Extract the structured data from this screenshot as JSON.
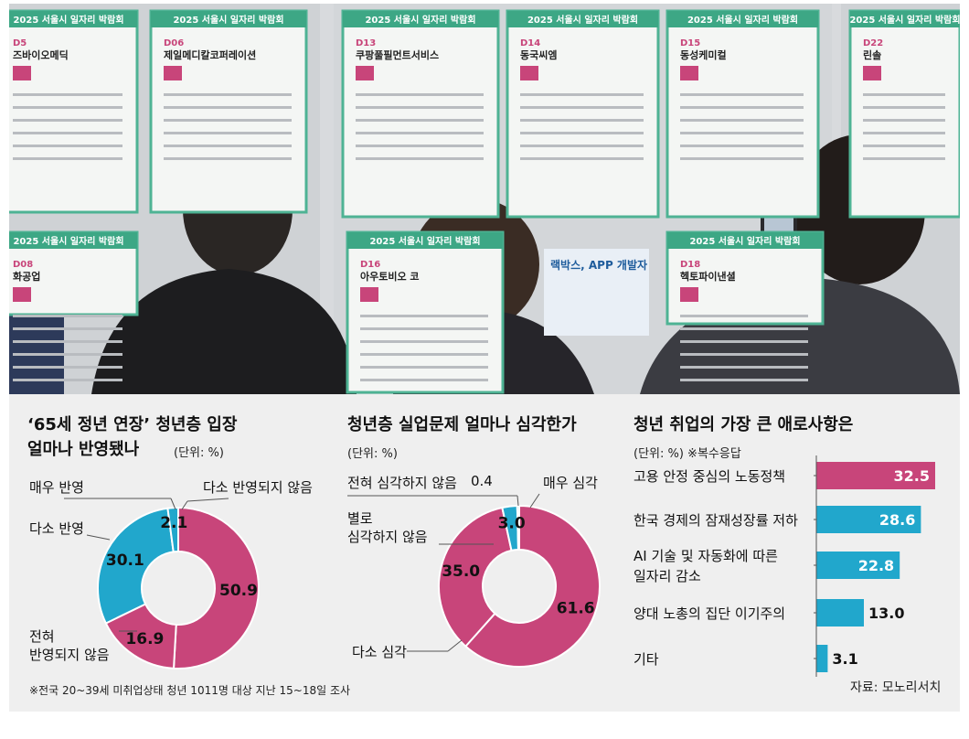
{
  "photo": {
    "booth_headers": [
      "2025 서울시 일자리 박람회",
      "2025 서울시 일자리 박람회",
      "2025 서울시 일자리 박람회",
      "2025 서울시 일자리 박람회",
      "2025 서울시 일자리 박람회",
      "2025 서울시 일자리 박람회"
    ],
    "booths": [
      {
        "code": "D5",
        "name": "즈바이오메딕"
      },
      {
        "code": "D06",
        "name": "제일메디칼코퍼레이션"
      },
      {
        "code": "D13",
        "name": "쿠팡풀필먼트서비스"
      },
      {
        "code": "D14",
        "name": "동국씨엠"
      },
      {
        "code": "D15",
        "name": "동성케미컬"
      },
      {
        "code": "D22",
        "name": "린솔"
      },
      {
        "code": "D08",
        "name": "화공업"
      },
      {
        "code": "D16",
        "name": "아우토비오 코"
      },
      {
        "code": "D18",
        "name": "헥토파이낸셜"
      }
    ],
    "app_poster": "랙박스, APP 개발자"
  },
  "footnote": "※전국 20~39세 미취업상태 청년 1011명 대상 지난 15~18일 조사",
  "source": "자료: 모노리서치",
  "colors": {
    "pink": "#c8457a",
    "blue": "#21a7cc",
    "gray": "#9aa3ab",
    "panel": "#efefef"
  },
  "chart_data": [
    {
      "type": "pie",
      "title_line1": "‘65세 정년 연장’ 청년층 입장",
      "title_line2": "얼마나 반영됐나",
      "unit": "(단위: %)",
      "slices": [
        {
          "label": "매우 반영",
          "value": 0.0,
          "color": "#9aa3ab"
        },
        {
          "label": "다소 반영되지 않음",
          "value": 50.9,
          "color": "#c8457a"
        },
        {
          "label": "전혀 반영되지 않음",
          "value": 16.9,
          "color": "#c8457a"
        },
        {
          "label": "다소 반영",
          "value": 30.1,
          "color": "#21a7cc"
        },
        {
          "label": "매우 반영",
          "value": 2.1,
          "color": "#21a7cc"
        }
      ],
      "labels": {
        "very": "매우 반영",
        "somewhat": "다소 반영",
        "not_somewhat": "다소 반영되지 않음",
        "not_at_all_1": "전혀",
        "not_at_all_2": "반영되지 않음"
      }
    },
    {
      "type": "pie",
      "title": "청년층 실업문제 얼마나 심각한가",
      "unit": "(단위: %)",
      "slices": [
        {
          "label": "매우 심각",
          "value": 61.6,
          "color": "#c8457a"
        },
        {
          "label": "다소 심각",
          "value": 35.0,
          "color": "#c8457a"
        },
        {
          "label": "별로 심각하지 않음",
          "value": 3.0,
          "color": "#21a7cc"
        },
        {
          "label": "전혀 심각하지 않음",
          "value": 0.4,
          "color": "#21a7cc"
        }
      ],
      "labels": {
        "very": "매우 심각",
        "somewhat": "다소 심각",
        "not_really_1": "별로",
        "not_really_2": "심각하지 않음",
        "not_at_all": "전혀 심각하지 않음"
      }
    },
    {
      "type": "bar",
      "title": "청년 취업의 가장 큰 애로사항은",
      "unit": "(단위: %)  ※복수응답",
      "xlim": [
        0,
        35
      ],
      "bars": [
        {
          "label_lines": [
            "고용 안정 중심의 노동정책"
          ],
          "value": 32.5,
          "color": "#c8457a"
        },
        {
          "label_lines": [
            "한국 경제의 잠재성장률 저하"
          ],
          "value": 28.6,
          "color": "#21a7cc"
        },
        {
          "label_lines": [
            "AI 기술 및 자동화에 따른",
            "일자리 감소"
          ],
          "value": 22.8,
          "color": "#21a7cc"
        },
        {
          "label_lines": [
            "양대 노총의 집단 이기주의"
          ],
          "value": 13.0,
          "color": "#21a7cc"
        },
        {
          "label_lines": [
            "기타"
          ],
          "value": 3.1,
          "color": "#21a7cc"
        }
      ]
    }
  ]
}
